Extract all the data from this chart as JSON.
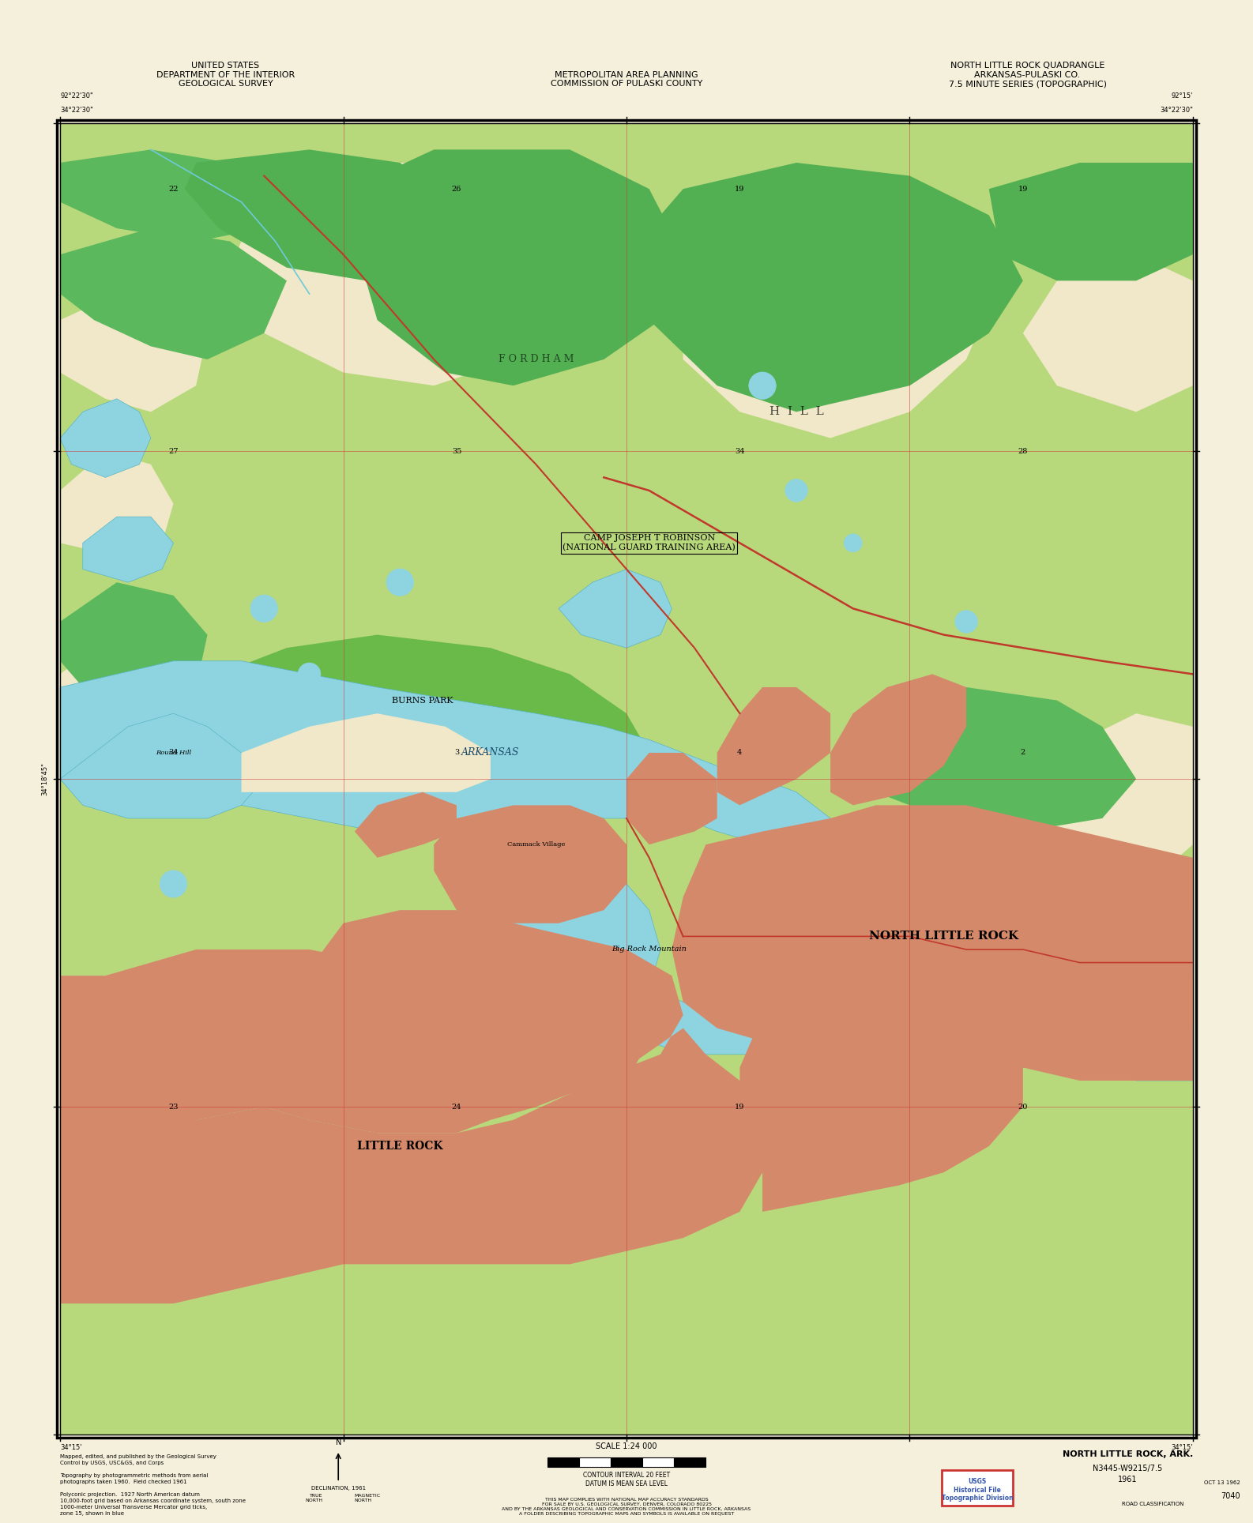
{
  "background_color": "#f5f0dc",
  "map_bg_light_green": "#b8d87c",
  "map_bg_medium_green": "#6db84a",
  "map_bg_dark_green": "#4a9e30",
  "urban_color": "#d4896a",
  "water_color": "#7ecfd8",
  "contour_cream": "#f0e8c8",
  "river_color": "#8ed4e0",
  "title_top_left": "UNITED STATES\nDEPARTMENT OF THE INTERIOR\nGEOLOGICAL SURVEY",
  "title_top_center": "METROPOLITAN AREA PLANNING\nCOMMISSION OF PULASKI COUNTY",
  "title_top_right": "NORTH LITTLE ROCK QUADRANGLE\nARKANSAS-PULASKI CO.\n7.5 MINUTE SERIES (TOPOGRAPHIC)",
  "coord_top_left": "34°22'30\"",
  "coord_bottom_left": "34°15'",
  "coord_top_right": "34°22'30\"",
  "coord_bottom_right": "34°15'",
  "year": "1961",
  "scale": "1:24,000"
}
